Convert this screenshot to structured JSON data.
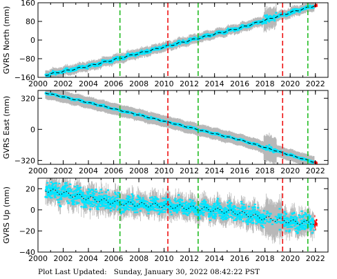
{
  "footer": {
    "label": "Plot Last Updated:",
    "value": "Sunday, January 30, 2022 08:42:22 PST"
  },
  "colors": {
    "scatter_error": "#b8b8b8",
    "data": "#00e5ff",
    "model": "#000000",
    "recent": "#ff0000",
    "equipment_change": "#22bb22",
    "earthquake_offset": "#ee1111"
  },
  "chart_data": [
    {
      "type": "scatter",
      "ylabel": "GVRS North (mm)",
      "xlim": [
        2000,
        2023
      ],
      "ylim": [
        -160,
        160
      ],
      "xticks": [
        2000,
        2002,
        2004,
        2006,
        2008,
        2010,
        2012,
        2014,
        2016,
        2018,
        2020,
        2022
      ],
      "yticks": [
        -160,
        -80,
        0,
        80,
        160
      ],
      "ytick_labels": [
        "−160",
        "−80",
        "0",
        "80",
        "160"
      ],
      "grid": false,
      "series": [
        {
          "x": [
            2000.6,
            2004,
            2008,
            2012,
            2016,
            2020,
            2022.1
          ],
          "values": [
            -150,
            -112,
            -57,
            -2,
            52,
            118,
            150
          ]
        }
      ],
      "green_lines": [
        2006.5,
        2012.7,
        2021.4
      ],
      "red_lines": [
        2010.3,
        2019.4
      ]
    },
    {
      "type": "scatter",
      "ylabel": "GVRS East (mm)",
      "xlim": [
        2000,
        2023
      ],
      "ylim": [
        -360,
        400
      ],
      "xticks": [
        2000,
        2002,
        2004,
        2006,
        2008,
        2010,
        2012,
        2014,
        2016,
        2018,
        2020,
        2022
      ],
      "yticks": [
        -320,
        0,
        320
      ],
      "ytick_labels": [
        "−320",
        "0",
        "320"
      ],
      "grid": false,
      "series": [
        {
          "x": [
            2000.6,
            2004,
            2008,
            2012,
            2016,
            2020,
            2022.1
          ],
          "values": [
            375,
            275,
            148,
            20,
            -108,
            -265,
            -345
          ]
        }
      ],
      "green_lines": [
        2006.5,
        2012.7,
        2021.4
      ],
      "red_lines": [
        2010.3,
        2019.4
      ]
    },
    {
      "type": "scatter",
      "ylabel": "GVRS Up (mm)",
      "xlim": [
        2000,
        2023
      ],
      "ylim": [
        -40,
        30
      ],
      "xticks": [
        2000,
        2002,
        2004,
        2006,
        2008,
        2010,
        2012,
        2014,
        2016,
        2018,
        2020,
        2022
      ],
      "yticks": [
        -40,
        -20,
        0,
        20
      ],
      "ytick_labels": [
        "−40",
        "−20",
        "0",
        "20"
      ],
      "grid": false,
      "series": [
        {
          "x": [
            2000.6,
            2002,
            2004,
            2006,
            2008,
            2010,
            2012,
            2014,
            2016,
            2018,
            2019.5,
            2020.5,
            2022.1
          ],
          "values": [
            19,
            16,
            11,
            7,
            5,
            4,
            2,
            0,
            -3,
            -8,
            -10,
            -12,
            -12
          ]
        }
      ],
      "green_lines": [
        2006.5,
        2012.7,
        2021.4
      ],
      "red_lines": [
        2010.3,
        2019.4
      ]
    }
  ]
}
